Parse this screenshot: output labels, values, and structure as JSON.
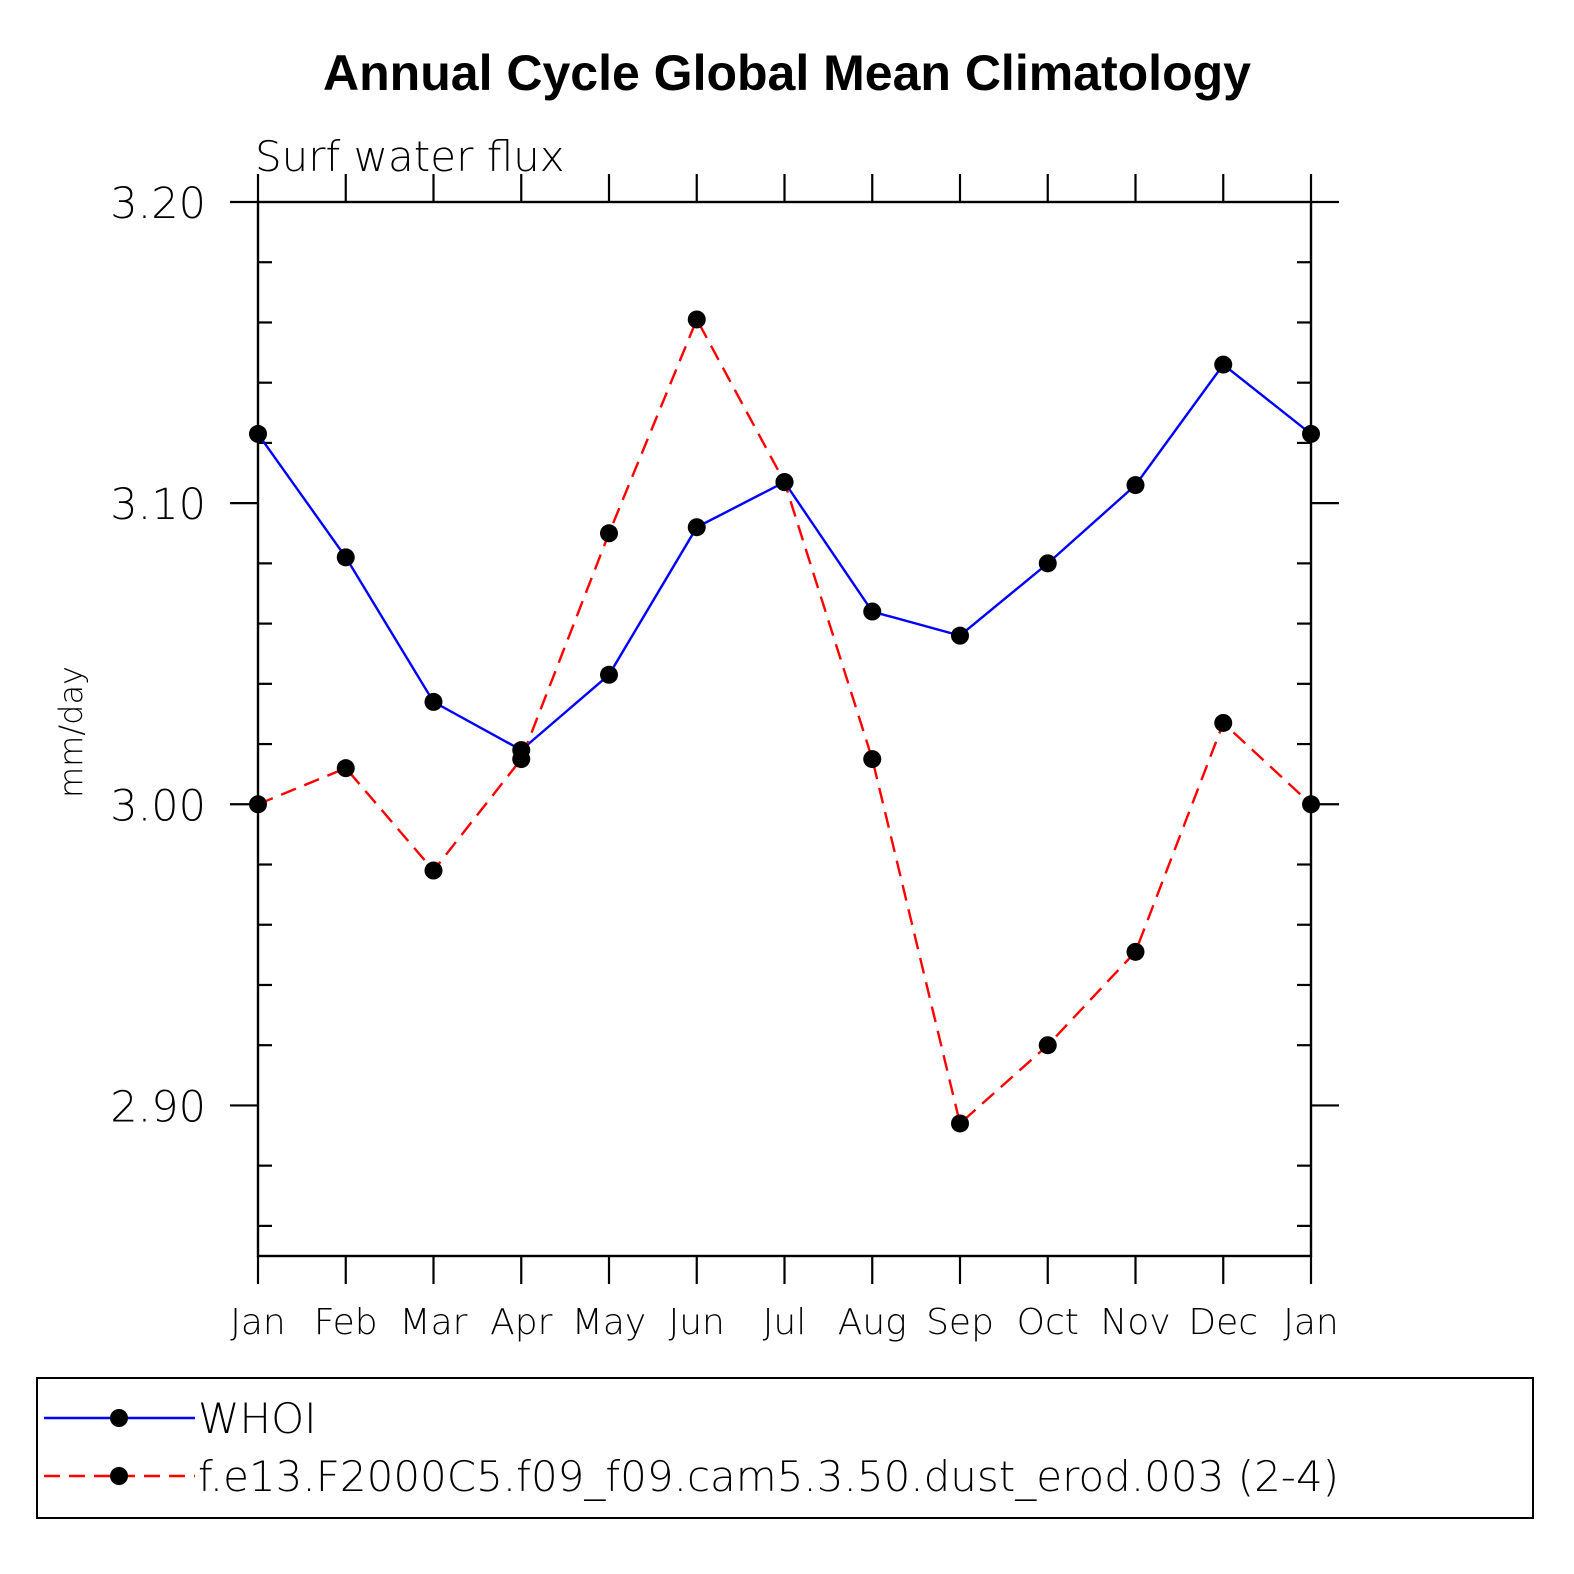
{
  "chart_data": {
    "type": "line",
    "title": "Annual Cycle Global Mean Climatology",
    "subtitle": "Surf water flux",
    "xlabel": "",
    "ylabel": "mm/day",
    "categories": [
      "Jan",
      "Feb",
      "Mar",
      "Apr",
      "May",
      "Jun",
      "Jul",
      "Aug",
      "Sep",
      "Oct",
      "Nov",
      "Dec",
      "Jan"
    ],
    "ylim": [
      2.85,
      3.2
    ],
    "yticks": [
      "3.20",
      "3.10",
      "3.00",
      "2.90"
    ],
    "ytick_values": [
      3.2,
      3.1,
      3.0,
      2.9
    ],
    "grid": false,
    "legend_position": "bottom",
    "series": [
      {
        "name": "WHOI",
        "color": "#0000ff",
        "style": "solid",
        "values": [
          3.123,
          3.082,
          3.034,
          3.018,
          3.043,
          3.092,
          3.107,
          3.064,
          3.056,
          3.08,
          3.106,
          3.146,
          3.123
        ]
      },
      {
        "name": "f.e13.F2000C5.f09_f09.cam5.3.50.dust_erod.003 (2-4)",
        "color": "#ff0000",
        "style": "dashed",
        "values": [
          3.0,
          3.012,
          2.978,
          3.015,
          3.09,
          3.161,
          3.107,
          3.015,
          2.894,
          2.92,
          2.951,
          3.027,
          3.0
        ]
      }
    ]
  }
}
